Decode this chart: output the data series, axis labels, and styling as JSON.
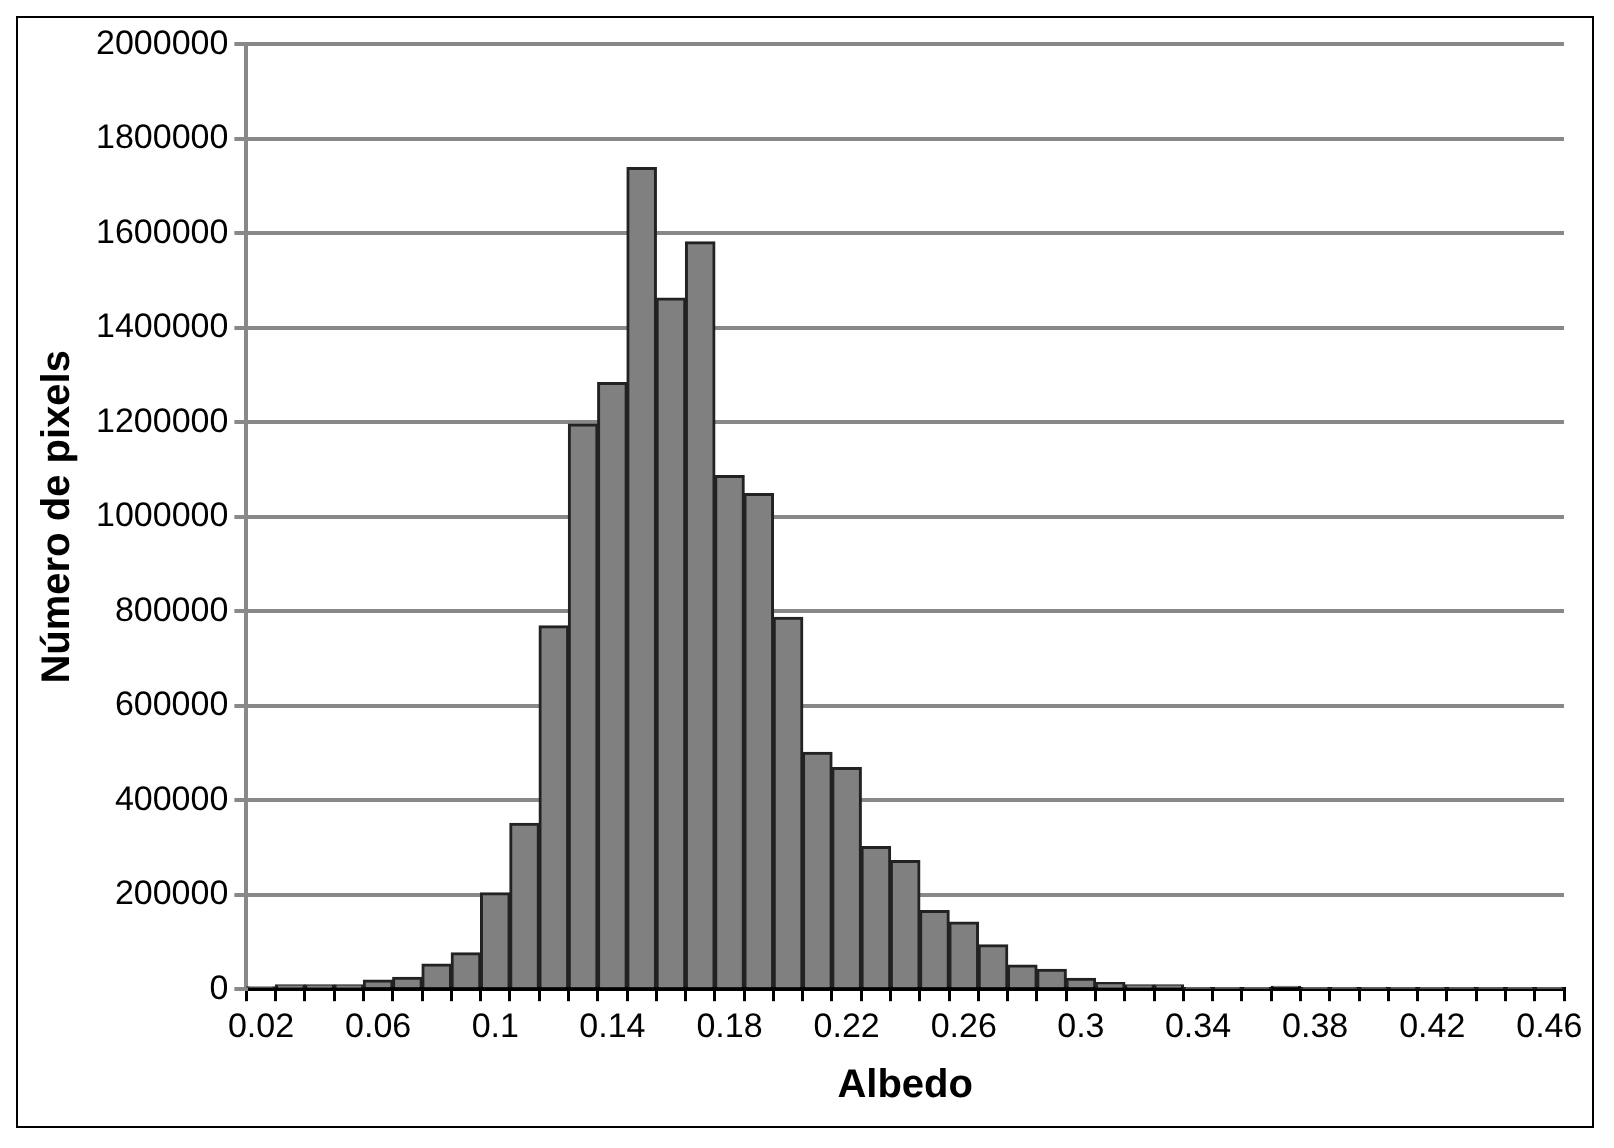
{
  "chart_data": {
    "type": "bar",
    "xlabel": "Albedo",
    "ylabel": "Número de pixels",
    "categories": [
      "0.02",
      null,
      null,
      null,
      "0.06",
      null,
      null,
      null,
      "0.1",
      null,
      null,
      null,
      "0.14",
      null,
      null,
      null,
      "0.18",
      null,
      null,
      null,
      "0.22",
      null,
      null,
      null,
      "0.26",
      null,
      null,
      null,
      "0.3",
      null,
      null,
      null,
      "0.34",
      null,
      null,
      null,
      "0.38",
      null,
      null,
      null,
      "0.42",
      null,
      null,
      null,
      "0.46"
    ],
    "values": [
      5000,
      9000,
      9000,
      9000,
      19000,
      25000,
      53000,
      77000,
      204000,
      351000,
      769000,
      1196000,
      1284000,
      1739000,
      1463000,
      1582000,
      1087000,
      1049000,
      787000,
      501000,
      469000,
      302000,
      272000,
      166000,
      142000,
      94000,
      51000,
      42000,
      23000,
      14000,
      9000,
      9000,
      2000,
      2000,
      2000,
      6000,
      1000,
      1000,
      1000,
      1000,
      1000,
      1000,
      1000,
      1000,
      1000
    ],
    "color": "#808080",
    "ylim": [
      0,
      2000000
    ],
    "yticks": [
      0,
      200000,
      400000,
      600000,
      800000,
      1000000,
      1200000,
      1400000,
      1600000,
      1800000,
      2000000
    ],
    "grid": "y"
  }
}
